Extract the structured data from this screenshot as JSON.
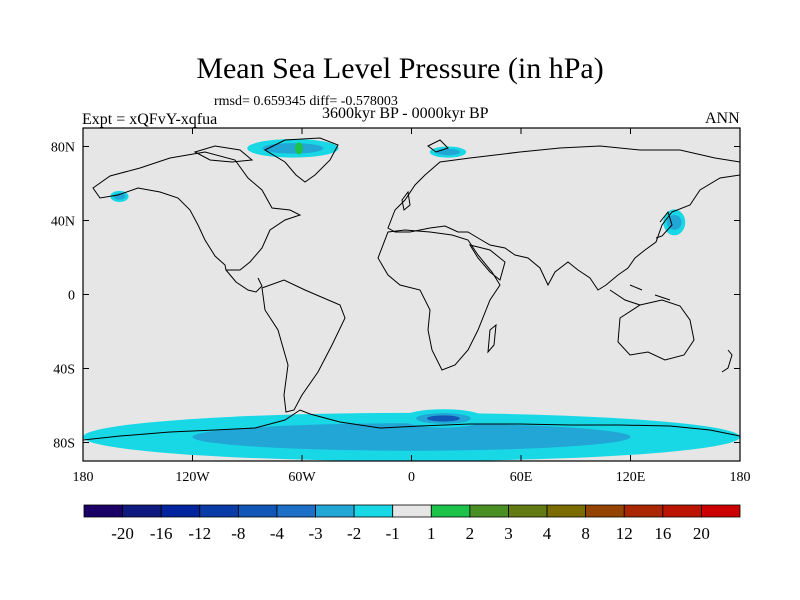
{
  "chart_data": {
    "type": "heatmap",
    "title": "Mean Sea Level Pressure (in hPa)",
    "stats_text": "rmsd= 0.659345 diff= -0.578003",
    "left_label": "Expt = xQFvY-xqfua",
    "center_label": "3600kyr BP - 0000kyr BP",
    "right_label": "ANN",
    "lon_range": [
      -180,
      180
    ],
    "lat_range": [
      -90,
      90
    ],
    "x_ticks": [
      {
        "value": -180,
        "label": "180"
      },
      {
        "value": -120,
        "label": "120W"
      },
      {
        "value": -60,
        "label": "60W"
      },
      {
        "value": 0,
        "label": "0"
      },
      {
        "value": 60,
        "label": "60E"
      },
      {
        "value": 120,
        "label": "120E"
      },
      {
        "value": 180,
        "label": "180"
      }
    ],
    "y_ticks": [
      {
        "value": 80,
        "label": "80N"
      },
      {
        "value": 40,
        "label": "40N"
      },
      {
        "value": 0,
        "label": "0"
      },
      {
        "value": -40,
        "label": "40S"
      },
      {
        "value": -80,
        "label": "80S"
      }
    ],
    "background_color": "#e6e6e6",
    "colorbar": {
      "levels": [
        "-20",
        "-16",
        "-12",
        "-8",
        "-4",
        "-3",
        "-2",
        "-1",
        "1",
        "2",
        "3",
        "4",
        "8",
        "12",
        "16",
        "20"
      ],
      "colors": [
        "#1a0066",
        "#0e1a80",
        "#00249e",
        "#0a3ca8",
        "#1257b8",
        "#1c70c6",
        "#21a6d6",
        "#19d8e6",
        "#e6e6e6",
        "#1cc24a",
        "#4a8f24",
        "#637a12",
        "#7a6c00",
        "#944400",
        "#aa2600",
        "#bb1400",
        "#cc0000"
      ]
    },
    "anomalies": [
      {
        "region": "Antarctic coastal ocean",
        "lon": [
          -180,
          180
        ],
        "lat": [
          -90,
          -64
        ],
        "value_range": [
          -2,
          -1
        ]
      },
      {
        "region": "Weddell / Atlantic sector Southern Ocean",
        "lon": [
          -5,
          40
        ],
        "lat": [
          -72,
          -62
        ],
        "value_range": [
          -8,
          -2
        ]
      },
      {
        "region": "Northwest Pacific off Japan",
        "lon": [
          138,
          150
        ],
        "lat": [
          32,
          46
        ],
        "value_range": [
          -2,
          -1
        ]
      },
      {
        "region": "Gulf of Alaska",
        "lon": [
          -165,
          -155
        ],
        "lat": [
          50,
          56
        ],
        "value_range": [
          -2,
          -1
        ]
      },
      {
        "region": "Canadian Arctic / Greenland",
        "lon": [
          -90,
          -40
        ],
        "lat": [
          74,
          84
        ],
        "value_range": [
          -2,
          2
        ]
      },
      {
        "region": "Barents / Svalbard",
        "lon": [
          10,
          30
        ],
        "lat": [
          74,
          80
        ],
        "value_range": [
          -2,
          -1
        ]
      }
    ]
  }
}
